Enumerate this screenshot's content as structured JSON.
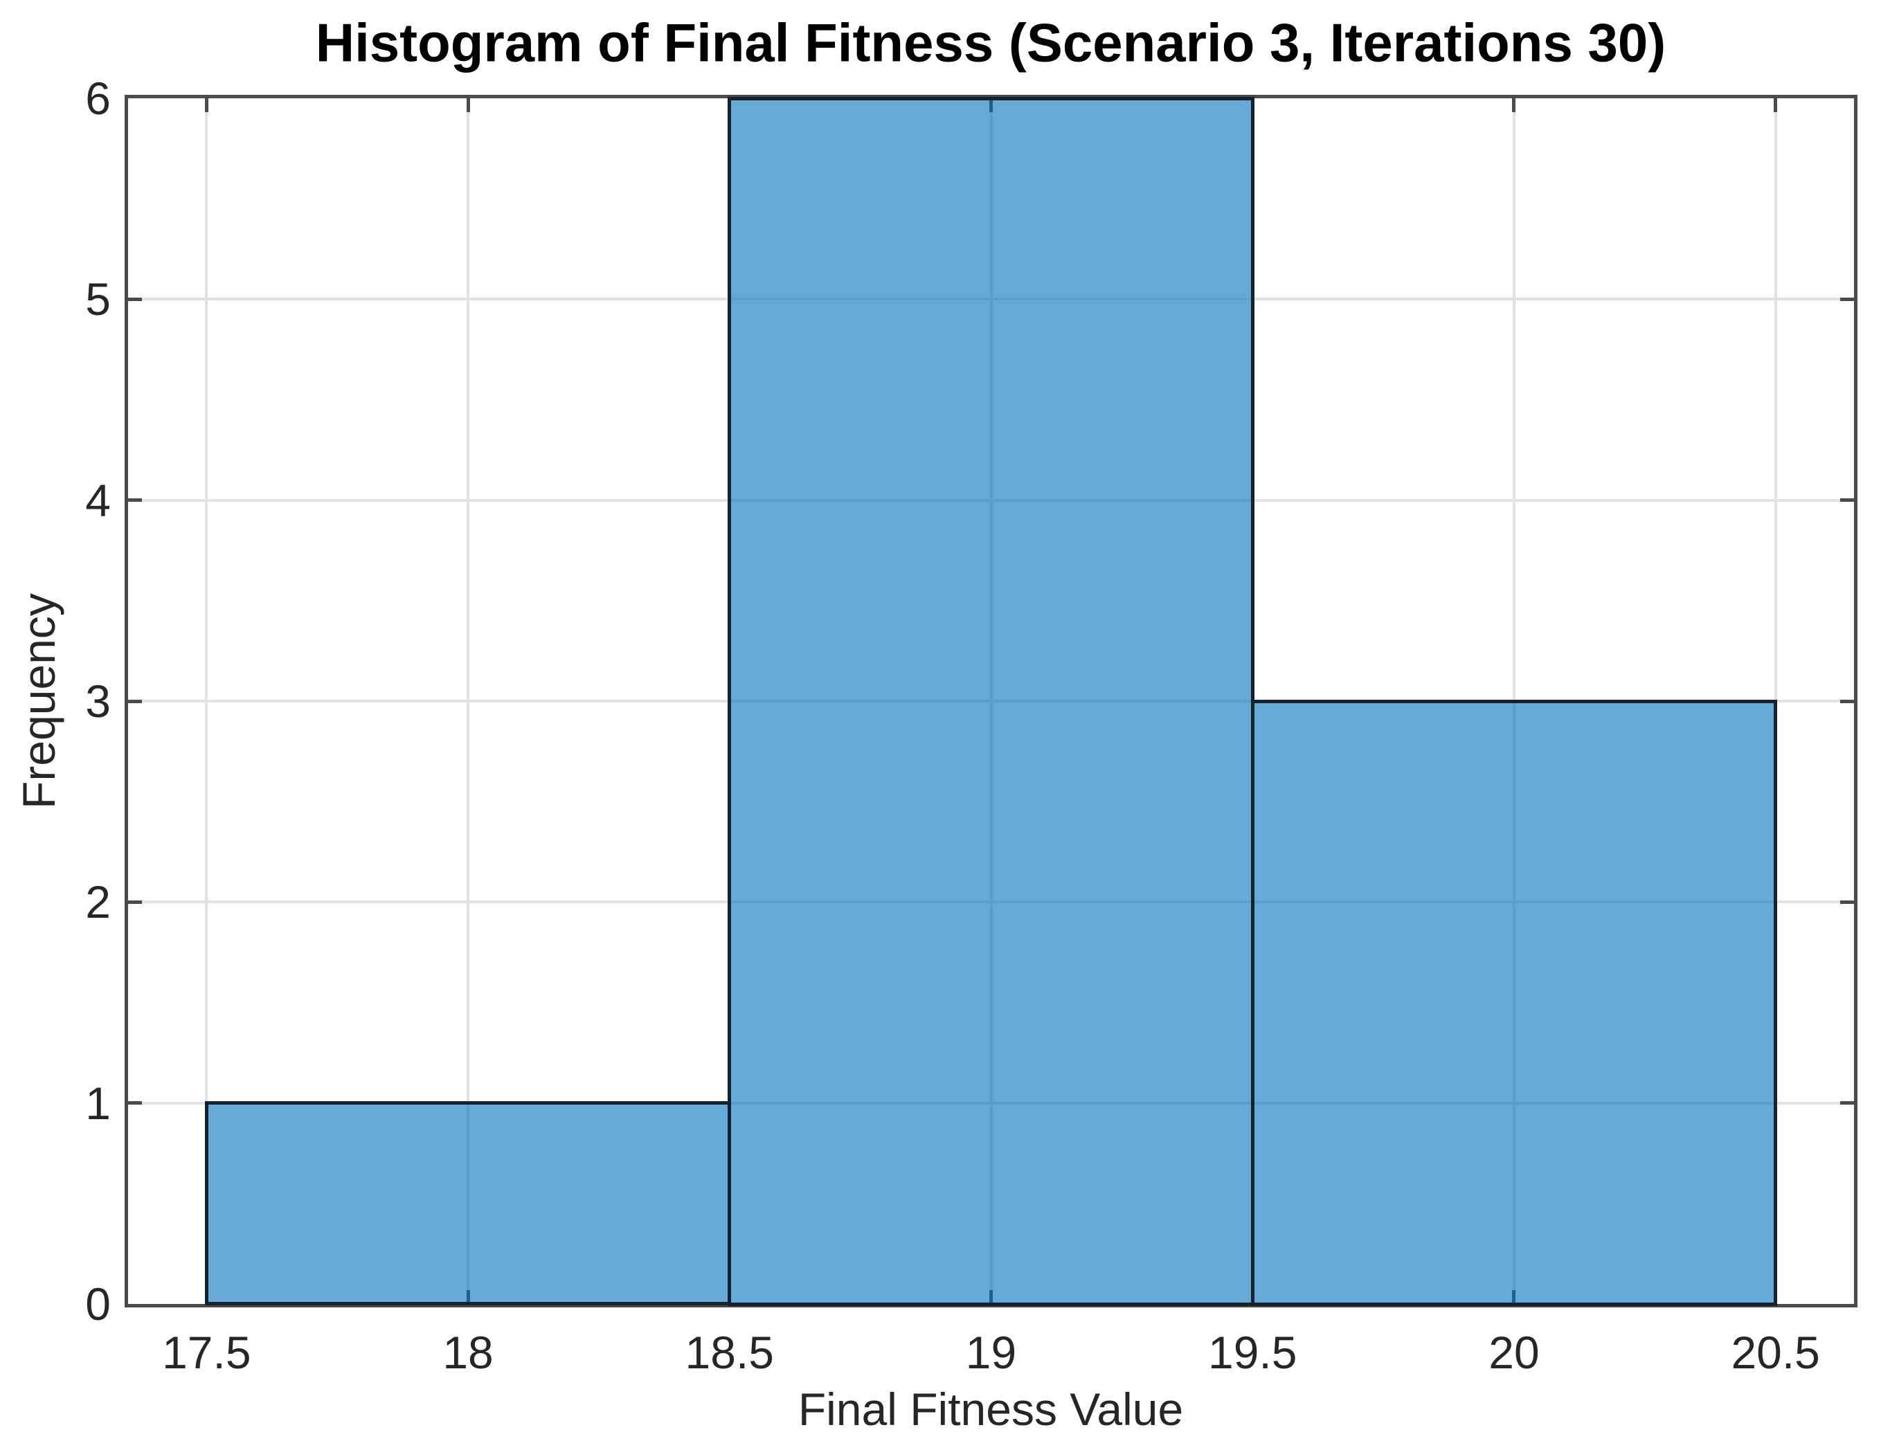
{
  "figure": {
    "background": "#ffffff"
  },
  "chart_data": {
    "type": "bar",
    "subtype": "histogram",
    "title": "Histogram of Final Fitness (Scenario 3, Iterations 30)",
    "xlabel": "Final Fitness Value",
    "ylabel": "Frequency",
    "bins": [
      {
        "x0": 17.5,
        "x1": 18.5,
        "count": 1
      },
      {
        "x0": 18.5,
        "x1": 19.5,
        "count": 6
      },
      {
        "x0": 19.5,
        "x1": 20.5,
        "count": 3
      }
    ],
    "categories": [
      "17.5-18.5",
      "18.5-19.5",
      "19.5-20.5"
    ],
    "values": [
      1,
      6,
      3
    ],
    "xticks": [
      17.5,
      18,
      18.5,
      19,
      19.5,
      20,
      20.5
    ],
    "xtick_labels": [
      "17.5",
      "18",
      "18.5",
      "19",
      "19.5",
      "20",
      "20.5"
    ],
    "yticks": [
      0,
      1,
      2,
      3,
      4,
      5,
      6
    ],
    "ytick_labels": [
      "0",
      "1",
      "2",
      "3",
      "4",
      "5",
      "6"
    ],
    "xlim": [
      17.35,
      20.65
    ],
    "ylim": [
      0,
      6
    ],
    "grid": true,
    "legend": null,
    "colors": {
      "bar_fill": "rgba(0,114,189,0.6)",
      "bar_fill_flat_hex": "#66aad7",
      "bar_edge": "#15222e",
      "axis": "#4a4a4a",
      "grid": "#e2e2e2",
      "text": "#262626",
      "title": "#000000"
    }
  }
}
